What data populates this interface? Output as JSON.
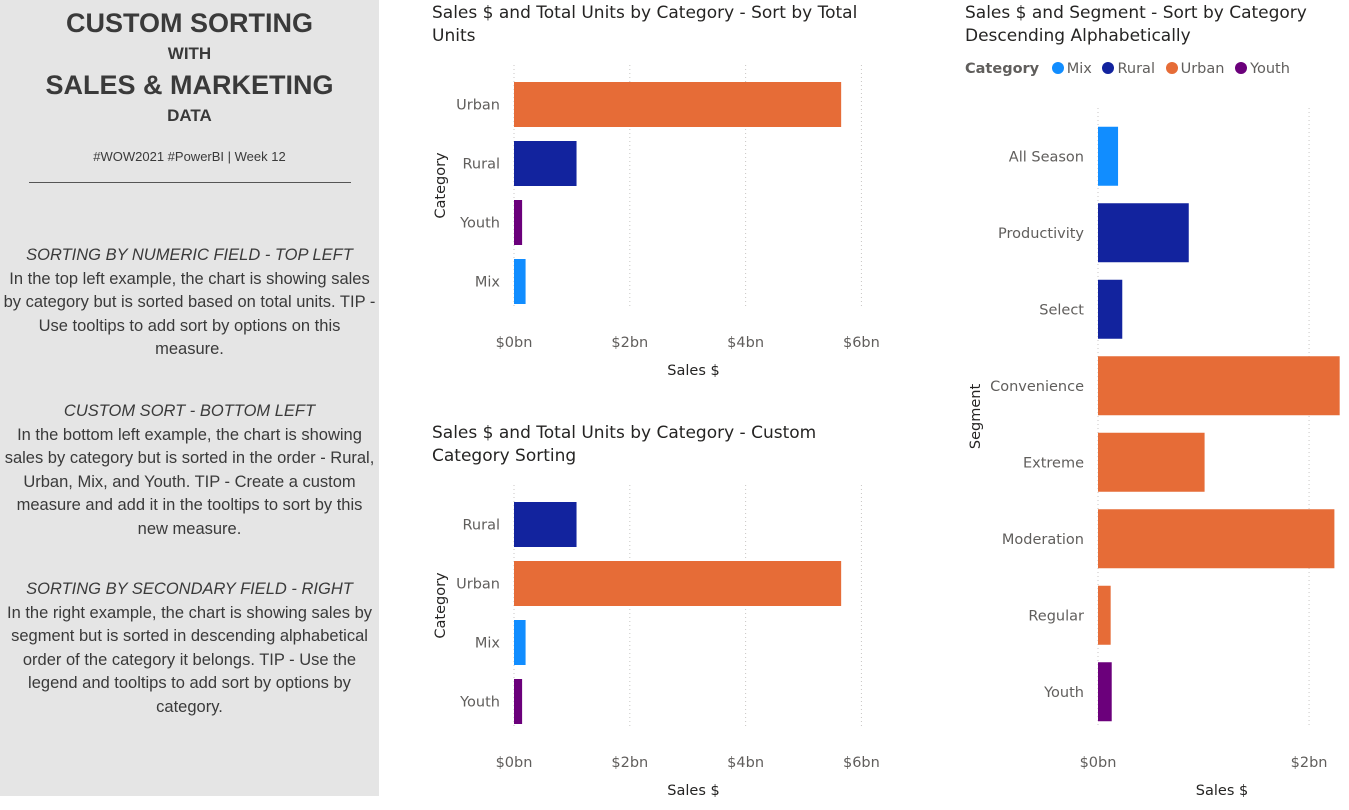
{
  "sidebar": {
    "title_line1": "CUSTOM SORTING",
    "title_line2": "WITH",
    "title_line3": "SALES & MARKETING",
    "title_line4": "DATA",
    "hashtags": "#WOW2021 #PowerBI | Week 12",
    "sections": [
      {
        "heading": "SORTING BY NUMERIC FIELD - TOP LEFT",
        "body": "In the top left example, the chart is showing sales by category but is sorted based on total units.  TIP - Use tooltips to add sort by options on this measure."
      },
      {
        "heading": "CUSTOM SORT - BOTTOM LEFT",
        "body": "In the bottom left example, the chart is showing sales by category but is sorted in the order - Rural, Urban, Mix, and Youth.  TIP - Create a custom measure and add it in the tooltips to sort by this new measure."
      },
      {
        "heading": "SORTING BY SECONDARY FIELD - RIGHT",
        "body": "In the right example, the chart is showing sales by segment but is sorted in descending alphabetical order of the category it belongs.  TIP - Use the legend and tooltips to add sort by options by category."
      }
    ]
  },
  "colors": {
    "Urban": "#e66c37",
    "Rural": "#12239e",
    "Youth": "#6b007b",
    "Mix": "#118dff",
    "grid": "#c8c6c4",
    "axis_text": "#605e5c"
  },
  "legend": {
    "title": "Category",
    "items": [
      {
        "label": "Mix",
        "color": "#118dff"
      },
      {
        "label": "Rural",
        "color": "#12239e"
      },
      {
        "label": "Urban",
        "color": "#e66c37"
      },
      {
        "label": "Youth",
        "color": "#6b007b"
      }
    ]
  },
  "chart_data": [
    {
      "type": "bar",
      "orientation": "horizontal",
      "title": "Sales $ and Total Units by Category - Sort by Total Units",
      "xlabel": "Sales $",
      "ylabel": "Category",
      "xlim": [
        0,
        6.2
      ],
      "xticks": [
        0,
        2,
        4,
        6
      ],
      "xtick_labels": [
        "$0bn",
        "$2bn",
        "$4bn",
        "$6bn"
      ],
      "grid": true,
      "categories": [
        "Urban",
        "Rural",
        "Youth",
        "Mix"
      ],
      "values": [
        5.65,
        1.08,
        0.14,
        0.2
      ],
      "value_unit": "bn $",
      "bar_categories": [
        "Urban",
        "Rural",
        "Youth",
        "Mix"
      ]
    },
    {
      "type": "bar",
      "orientation": "horizontal",
      "title": "Sales $ and Total Units by Category - Custom Category Sorting",
      "xlabel": "Sales $",
      "ylabel": "Category",
      "xlim": [
        0,
        6.2
      ],
      "xticks": [
        0,
        2,
        4,
        6
      ],
      "xtick_labels": [
        "$0bn",
        "$2bn",
        "$4bn",
        "$6bn"
      ],
      "grid": true,
      "categories": [
        "Rural",
        "Urban",
        "Mix",
        "Youth"
      ],
      "values": [
        1.08,
        5.65,
        0.2,
        0.14
      ],
      "value_unit": "bn $",
      "bar_categories": [
        "Rural",
        "Urban",
        "Mix",
        "Youth"
      ]
    },
    {
      "type": "bar",
      "orientation": "horizontal",
      "title": "Sales $ and Segment - Sort by Category Descending Alphabetically",
      "xlabel": "Sales $",
      "ylabel": "Segment",
      "xlim": [
        0,
        2.35
      ],
      "xticks": [
        0,
        2
      ],
      "xtick_labels": [
        "$0bn",
        "$2bn"
      ],
      "grid": true,
      "legend_position": "top-left",
      "categories": [
        "All Season",
        "Productivity",
        "Select",
        "Convenience",
        "Extreme",
        "Moderation",
        "Regular",
        "Youth"
      ],
      "values": [
        0.19,
        0.86,
        0.23,
        2.29,
        1.01,
        2.24,
        0.12,
        0.13
      ],
      "value_unit": "bn $",
      "bar_categories": [
        "Mix",
        "Rural",
        "Rural",
        "Urban",
        "Urban",
        "Urban",
        "Urban",
        "Youth"
      ]
    }
  ]
}
